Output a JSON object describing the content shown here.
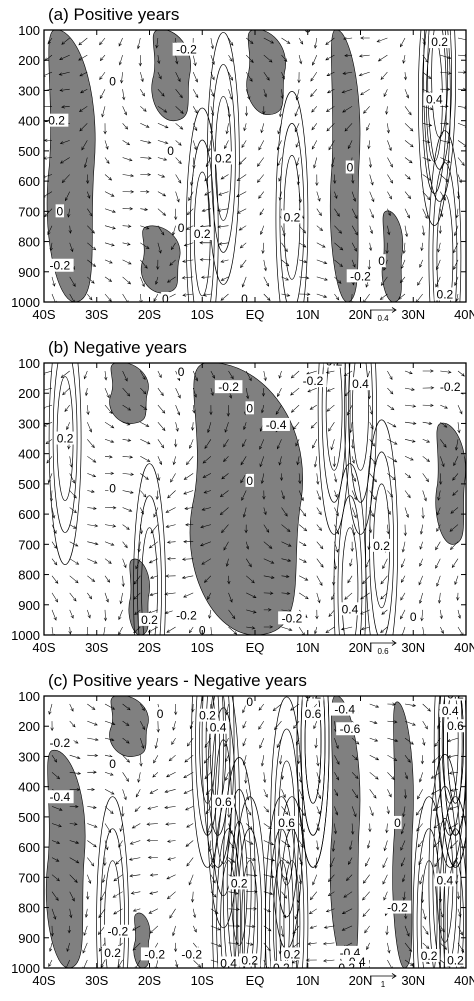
{
  "figure": {
    "panels": [
      {
        "title": "(a) Positive years",
        "ref_vector": "0.4"
      },
      {
        "title": "(b) Negative years",
        "ref_vector": "0.6"
      },
      {
        "title": "(c) Positive years - Negative years",
        "ref_vector": "1"
      }
    ],
    "colors": {
      "shade": "#808080",
      "contour": "#000000",
      "frame": "#000000",
      "background": "#ffffff"
    }
  },
  "chart_data": [
    {
      "type": "heatmap",
      "title": "(a) Positive years",
      "xlabel": "",
      "ylabel": "",
      "x_ticks": [
        "40S",
        "30S",
        "20S",
        "10S",
        "EQ",
        "10N",
        "20N",
        "30N",
        "40N"
      ],
      "y_ticks": [
        "100",
        "200",
        "300",
        "400",
        "500",
        "600",
        "700",
        "800",
        "900",
        "1000"
      ],
      "xlim": [
        -40,
        40
      ],
      "ylim": [
        1000,
        100
      ],
      "shading": "negative values shaded grey",
      "vector_reference": "0.4",
      "shaded_regions": [
        {
          "x": [
            -40,
            -30
          ],
          "p": [
            100,
            1000
          ]
        },
        {
          "x": [
            -20,
            -12
          ],
          "p": [
            100,
            400
          ]
        },
        {
          "x": [
            -22,
            -14
          ],
          "p": [
            750,
            970
          ]
        },
        {
          "x": [
            -2,
            6
          ],
          "p": [
            100,
            380
          ]
        },
        {
          "x": [
            14,
            20
          ],
          "p": [
            100,
            1000
          ]
        },
        {
          "x": [
            24,
            28
          ],
          "p": [
            700,
            1000
          ]
        }
      ],
      "contour_labels": [
        {
          "text": "0",
          "x": 10,
          "p": 95
        },
        {
          "text": "0.2",
          "x": 35,
          "p": 140
        },
        {
          "text": "-0.2",
          "x": -13,
          "p": 165
        },
        {
          "text": "0",
          "x": -27,
          "p": 270
        },
        {
          "text": "0.4",
          "x": 34,
          "p": 330
        },
        {
          "text": "-0.2",
          "x": -38,
          "p": 400
        },
        {
          "text": "0",
          "x": -16,
          "p": 500
        },
        {
          "text": "0.2",
          "x": -6,
          "p": 525
        },
        {
          "text": "0",
          "x": 18,
          "p": 555
        },
        {
          "text": "0",
          "x": -37,
          "p": 700
        },
        {
          "text": "0.2",
          "x": 7,
          "p": 720
        },
        {
          "text": "0",
          "x": -14,
          "p": 755
        },
        {
          "text": "0.2",
          "x": -10,
          "p": 775
        },
        {
          "text": "0",
          "x": 24,
          "p": 865
        },
        {
          "text": "-0.2",
          "x": -37,
          "p": 880
        },
        {
          "text": "-0.2",
          "x": 20,
          "p": 915
        },
        {
          "text": "0",
          "x": -17,
          "p": 990
        },
        {
          "text": "0",
          "x": -2,
          "p": 990
        },
        {
          "text": "0.2",
          "x": 36,
          "p": 975
        }
      ]
    },
    {
      "type": "heatmap",
      "title": "(b) Negative years",
      "xlabel": "",
      "ylabel": "",
      "x_ticks": [
        "40S",
        "30S",
        "20S",
        "10S",
        "EQ",
        "10N",
        "20N",
        "30N",
        "40N"
      ],
      "y_ticks": [
        "100",
        "200",
        "300",
        "400",
        "500",
        "600",
        "700",
        "800",
        "900",
        "1000"
      ],
      "xlim": [
        -40,
        40
      ],
      "ylim": [
        1000,
        100
      ],
      "shading": "negative values shaded grey",
      "vector_reference": "0.6",
      "shaded_regions": [
        {
          "x": [
            -28,
            -20
          ],
          "p": [
            100,
            300
          ]
        },
        {
          "x": [
            -24,
            -20
          ],
          "p": [
            750,
            1000
          ]
        },
        {
          "x": [
            -14,
            10
          ],
          "p": [
            100,
            1000
          ]
        },
        {
          "x": [
            34,
            40
          ],
          "p": [
            300,
            700
          ]
        }
      ],
      "contour_labels": [
        {
          "text": "0.2",
          "x": 15,
          "p": 95
        },
        {
          "text": "0",
          "x": -14,
          "p": 130
        },
        {
          "text": "-0.2",
          "x": -5,
          "p": 180
        },
        {
          "text": "-0.2",
          "x": 11,
          "p": 160
        },
        {
          "text": "0.4",
          "x": 20,
          "p": 170
        },
        {
          "text": "-0.2",
          "x": 37,
          "p": 180
        },
        {
          "text": "0",
          "x": -1,
          "p": 250
        },
        {
          "text": "-0.4",
          "x": 4,
          "p": 305
        },
        {
          "text": "0.2",
          "x": -36,
          "p": 350
        },
        {
          "text": "0",
          "x": -1,
          "p": 490
        },
        {
          "text": "0",
          "x": -27,
          "p": 515
        },
        {
          "text": "0.2",
          "x": 24,
          "p": 705
        },
        {
          "text": "0.4",
          "x": 18,
          "p": 915
        },
        {
          "text": "0.2",
          "x": -20,
          "p": 950
        },
        {
          "text": "-0.2",
          "x": -13,
          "p": 935
        },
        {
          "text": "0",
          "x": -10,
          "p": 985
        },
        {
          "text": "-0.2",
          "x": 7,
          "p": 945
        },
        {
          "text": "0",
          "x": 30,
          "p": 940
        }
      ]
    },
    {
      "type": "heatmap",
      "title": "(c) Positive years - Negative years",
      "xlabel": "",
      "ylabel": "",
      "x_ticks": [
        "40S",
        "30S",
        "20S",
        "10S",
        "EQ",
        "10N",
        "20N",
        "30N",
        "40N"
      ],
      "y_ticks": [
        "100",
        "200",
        "300",
        "400",
        "500",
        "600",
        "700",
        "800",
        "900",
        "1000"
      ],
      "xlim": [
        -40,
        40
      ],
      "ylim": [
        1000,
        100
      ],
      "shading": "negative values shaded grey",
      "vector_reference": "1",
      "shaded_regions": [
        {
          "x": [
            -28,
            -20
          ],
          "p": [
            100,
            300
          ]
        },
        {
          "x": [
            -40,
            -32
          ],
          "p": [
            280,
            1000
          ]
        },
        {
          "x": [
            -23,
            -20
          ],
          "p": [
            820,
            1000
          ]
        },
        {
          "x": [
            14,
            20
          ],
          "p": [
            100,
            1000
          ]
        },
        {
          "x": [
            26,
            30
          ],
          "p": [
            120,
            1000
          ]
        }
      ],
      "contour_labels": [
        {
          "text": "0.2",
          "x": 11,
          "p": 95
        },
        {
          "text": "0.2",
          "x": 38,
          "p": 95
        },
        {
          "text": "0",
          "x": -1,
          "p": 120
        },
        {
          "text": "-0.4",
          "x": 17,
          "p": 145
        },
        {
          "text": "0",
          "x": -18,
          "p": 160
        },
        {
          "text": "0.2",
          "x": -9,
          "p": 165
        },
        {
          "text": "0.6",
          "x": 11,
          "p": 160
        },
        {
          "text": "0.4",
          "x": 37,
          "p": 150
        },
        {
          "text": "0.4",
          "x": -7,
          "p": 205
        },
        {
          "text": "-0.6",
          "x": 18,
          "p": 210
        },
        {
          "text": "0.6",
          "x": 38,
          "p": 200
        },
        {
          "text": "-0.2",
          "x": -37,
          "p": 255
        },
        {
          "text": "0",
          "x": -27,
          "p": 325
        },
        {
          "text": "-0.4",
          "x": -37,
          "p": 435
        },
        {
          "text": "0.6",
          "x": -6,
          "p": 450
        },
        {
          "text": "0",
          "x": 27,
          "p": 520
        },
        {
          "text": "0.6",
          "x": 6,
          "p": 520
        },
        {
          "text": "0.2",
          "x": -3,
          "p": 720
        },
        {
          "text": "0.4",
          "x": 36,
          "p": 710
        },
        {
          "text": "-0.2",
          "x": 27,
          "p": 800
        },
        {
          "text": "-0.2",
          "x": -26,
          "p": 880
        },
        {
          "text": "0.2",
          "x": -27,
          "p": 950
        },
        {
          "text": "-0.2",
          "x": -19,
          "p": 955
        },
        {
          "text": "-0.2",
          "x": -12,
          "p": 955
        },
        {
          "text": "0.4",
          "x": -5,
          "p": 985
        },
        {
          "text": "0.2",
          "x": -1,
          "p": 975
        },
        {
          "text": "0.2",
          "x": 7,
          "p": 955
        },
        {
          "text": "0.2",
          "x": 5,
          "p": 1000
        },
        {
          "text": "-0.4",
          "x": 18,
          "p": 950
        },
        {
          "text": "-0.4",
          "x": 19,
          "p": 980
        },
        {
          "text": "-0.2",
          "x": 17,
          "p": 1000
        },
        {
          "text": "0.2",
          "x": 33,
          "p": 960
        },
        {
          "text": "0.2",
          "x": 38,
          "p": 975
        }
      ]
    }
  ]
}
